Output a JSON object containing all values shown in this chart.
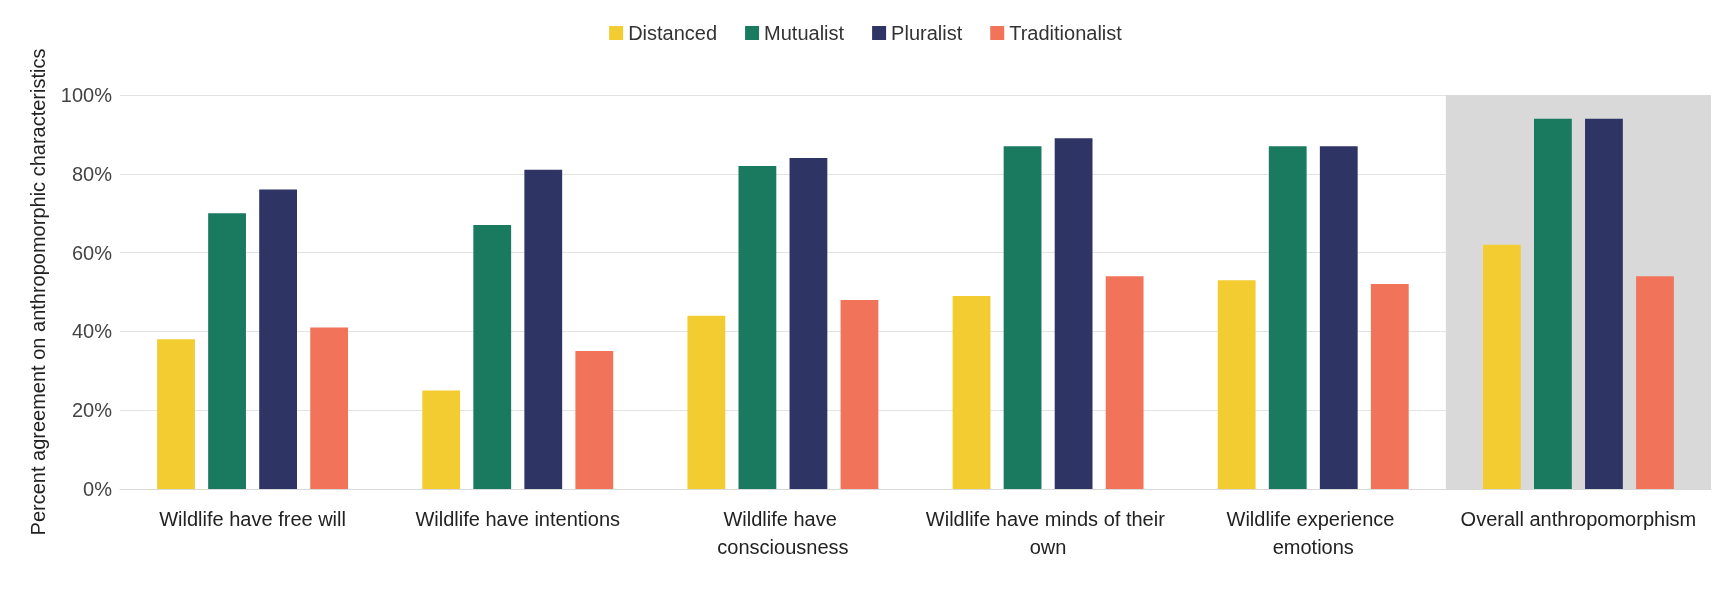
{
  "chart_data": {
    "type": "bar",
    "ylabel": "Percent agreement on anthropomorphic characteristics",
    "categories": [
      "Wildlife have free will",
      "Wildlife have intentions",
      "Wildlife have consciousness",
      "Wildlife have minds of their own",
      "Wildlife experience emotions",
      "Overall anthropomorphism"
    ],
    "series": [
      {
        "name": "Distanced",
        "color": "#f2cc30",
        "values": [
          38,
          25,
          44,
          49,
          53,
          62
        ]
      },
      {
        "name": "Mutualist",
        "color": "#1a7a5f",
        "values": [
          70,
          67,
          82,
          87,
          87,
          94
        ]
      },
      {
        "name": "Pluralist",
        "color": "#2e3464",
        "values": [
          76,
          81,
          84,
          89,
          87,
          94
        ]
      },
      {
        "name": "Traditionalist",
        "color": "#f0735a",
        "values": [
          41,
          35,
          48,
          54,
          52,
          54
        ]
      }
    ],
    "ylim": [
      0,
      100
    ],
    "yticks": [
      {
        "value": 0,
        "label": "0%"
      },
      {
        "value": 20,
        "label": "20%"
      },
      {
        "value": 40,
        "label": "40%"
      },
      {
        "value": 60,
        "label": "60%"
      },
      {
        "value": 80,
        "label": "80%"
      },
      {
        "value": 100,
        "label": "100%"
      }
    ],
    "bands": [
      {
        "axis": "x",
        "from": "Overall anthropomorphism",
        "to": "Overall anthropomorphism",
        "color": "#d9d9d9"
      }
    ],
    "grid": true,
    "legend": "top"
  }
}
